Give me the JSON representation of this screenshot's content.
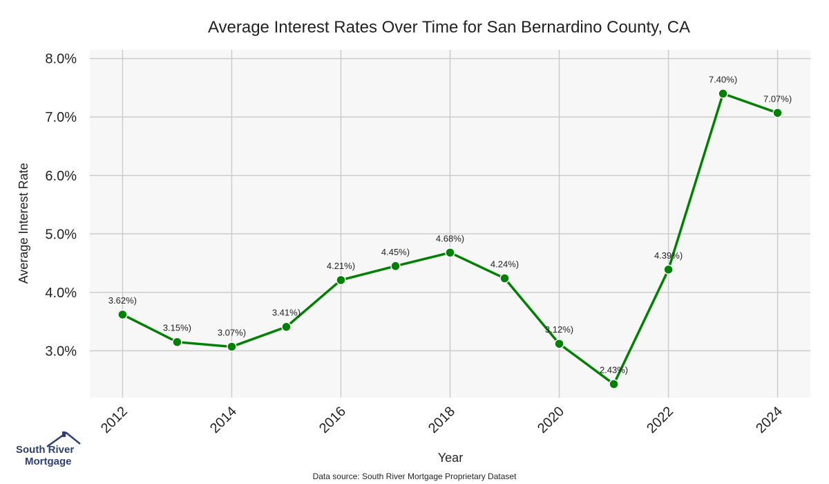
{
  "chart_data": {
    "type": "line",
    "title": "Average Interest Rates Over Time for San Bernardino County, CA",
    "xlabel": "Year",
    "ylabel": "Average Interest Rate",
    "x": [
      2012,
      2013,
      2014,
      2015,
      2016,
      2017,
      2018,
      2019,
      2020,
      2021,
      2022,
      2023,
      2024
    ],
    "series": [
      {
        "values": [
          3.62,
          3.15,
          3.07,
          3.41,
          4.21,
          4.45,
          4.68,
          4.24,
          3.12,
          2.43,
          4.39,
          7.4,
          7.07
        ]
      }
    ],
    "data_labels": [
      "3.62%)",
      "3.15%)",
      "3.07%)",
      "3.41%)",
      "4.21%)",
      "4.45%)",
      "4.68%)",
      "4.24%)",
      "3.12%)",
      "2.43%)",
      "4.39%)",
      "7.40%)",
      "7.07%)"
    ],
    "x_ticks": [
      "2012",
      "2014",
      "2016",
      "2018",
      "2020",
      "2022",
      "2024"
    ],
    "y_ticks": [
      "3.0%",
      "4.0%",
      "5.0%",
      "6.0%",
      "7.0%",
      "8.0%"
    ],
    "y_tick_values": [
      3,
      4,
      5,
      6,
      7,
      8
    ],
    "x_tick_values": [
      2012,
      2014,
      2016,
      2018,
      2020,
      2022,
      2024
    ],
    "xlim": [
      2011.4,
      2024.6
    ],
    "ylim": [
      2.2,
      8.15
    ],
    "grid": true,
    "line_color": "#008000",
    "plot_background": "#f7f7f7",
    "grid_color": "#cccccc"
  },
  "footer": {
    "source": "Data source: South River Mortgage Proprietary Dataset"
  },
  "logo": {
    "line1": "South River",
    "line2": "Mortgage",
    "color": "#2e3f72"
  }
}
